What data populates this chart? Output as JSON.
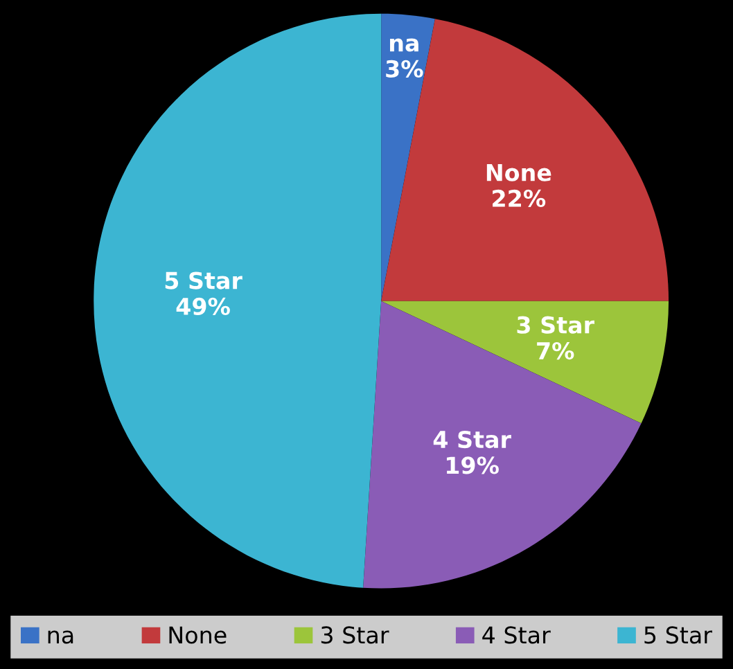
{
  "chart_data": {
    "type": "pie",
    "categories": [
      "na",
      "None",
      "3 Star",
      "4 Star",
      "5 Star"
    ],
    "values": [
      3,
      22,
      7,
      19,
      49
    ],
    "value_labels": [
      "3%",
      "22%",
      "7%",
      "19%",
      "49%"
    ],
    "colors": [
      "#3a72c6",
      "#c23a3c",
      "#9cc53b",
      "#8a5cb6",
      "#3cb5d2"
    ],
    "legend": "bottom"
  }
}
